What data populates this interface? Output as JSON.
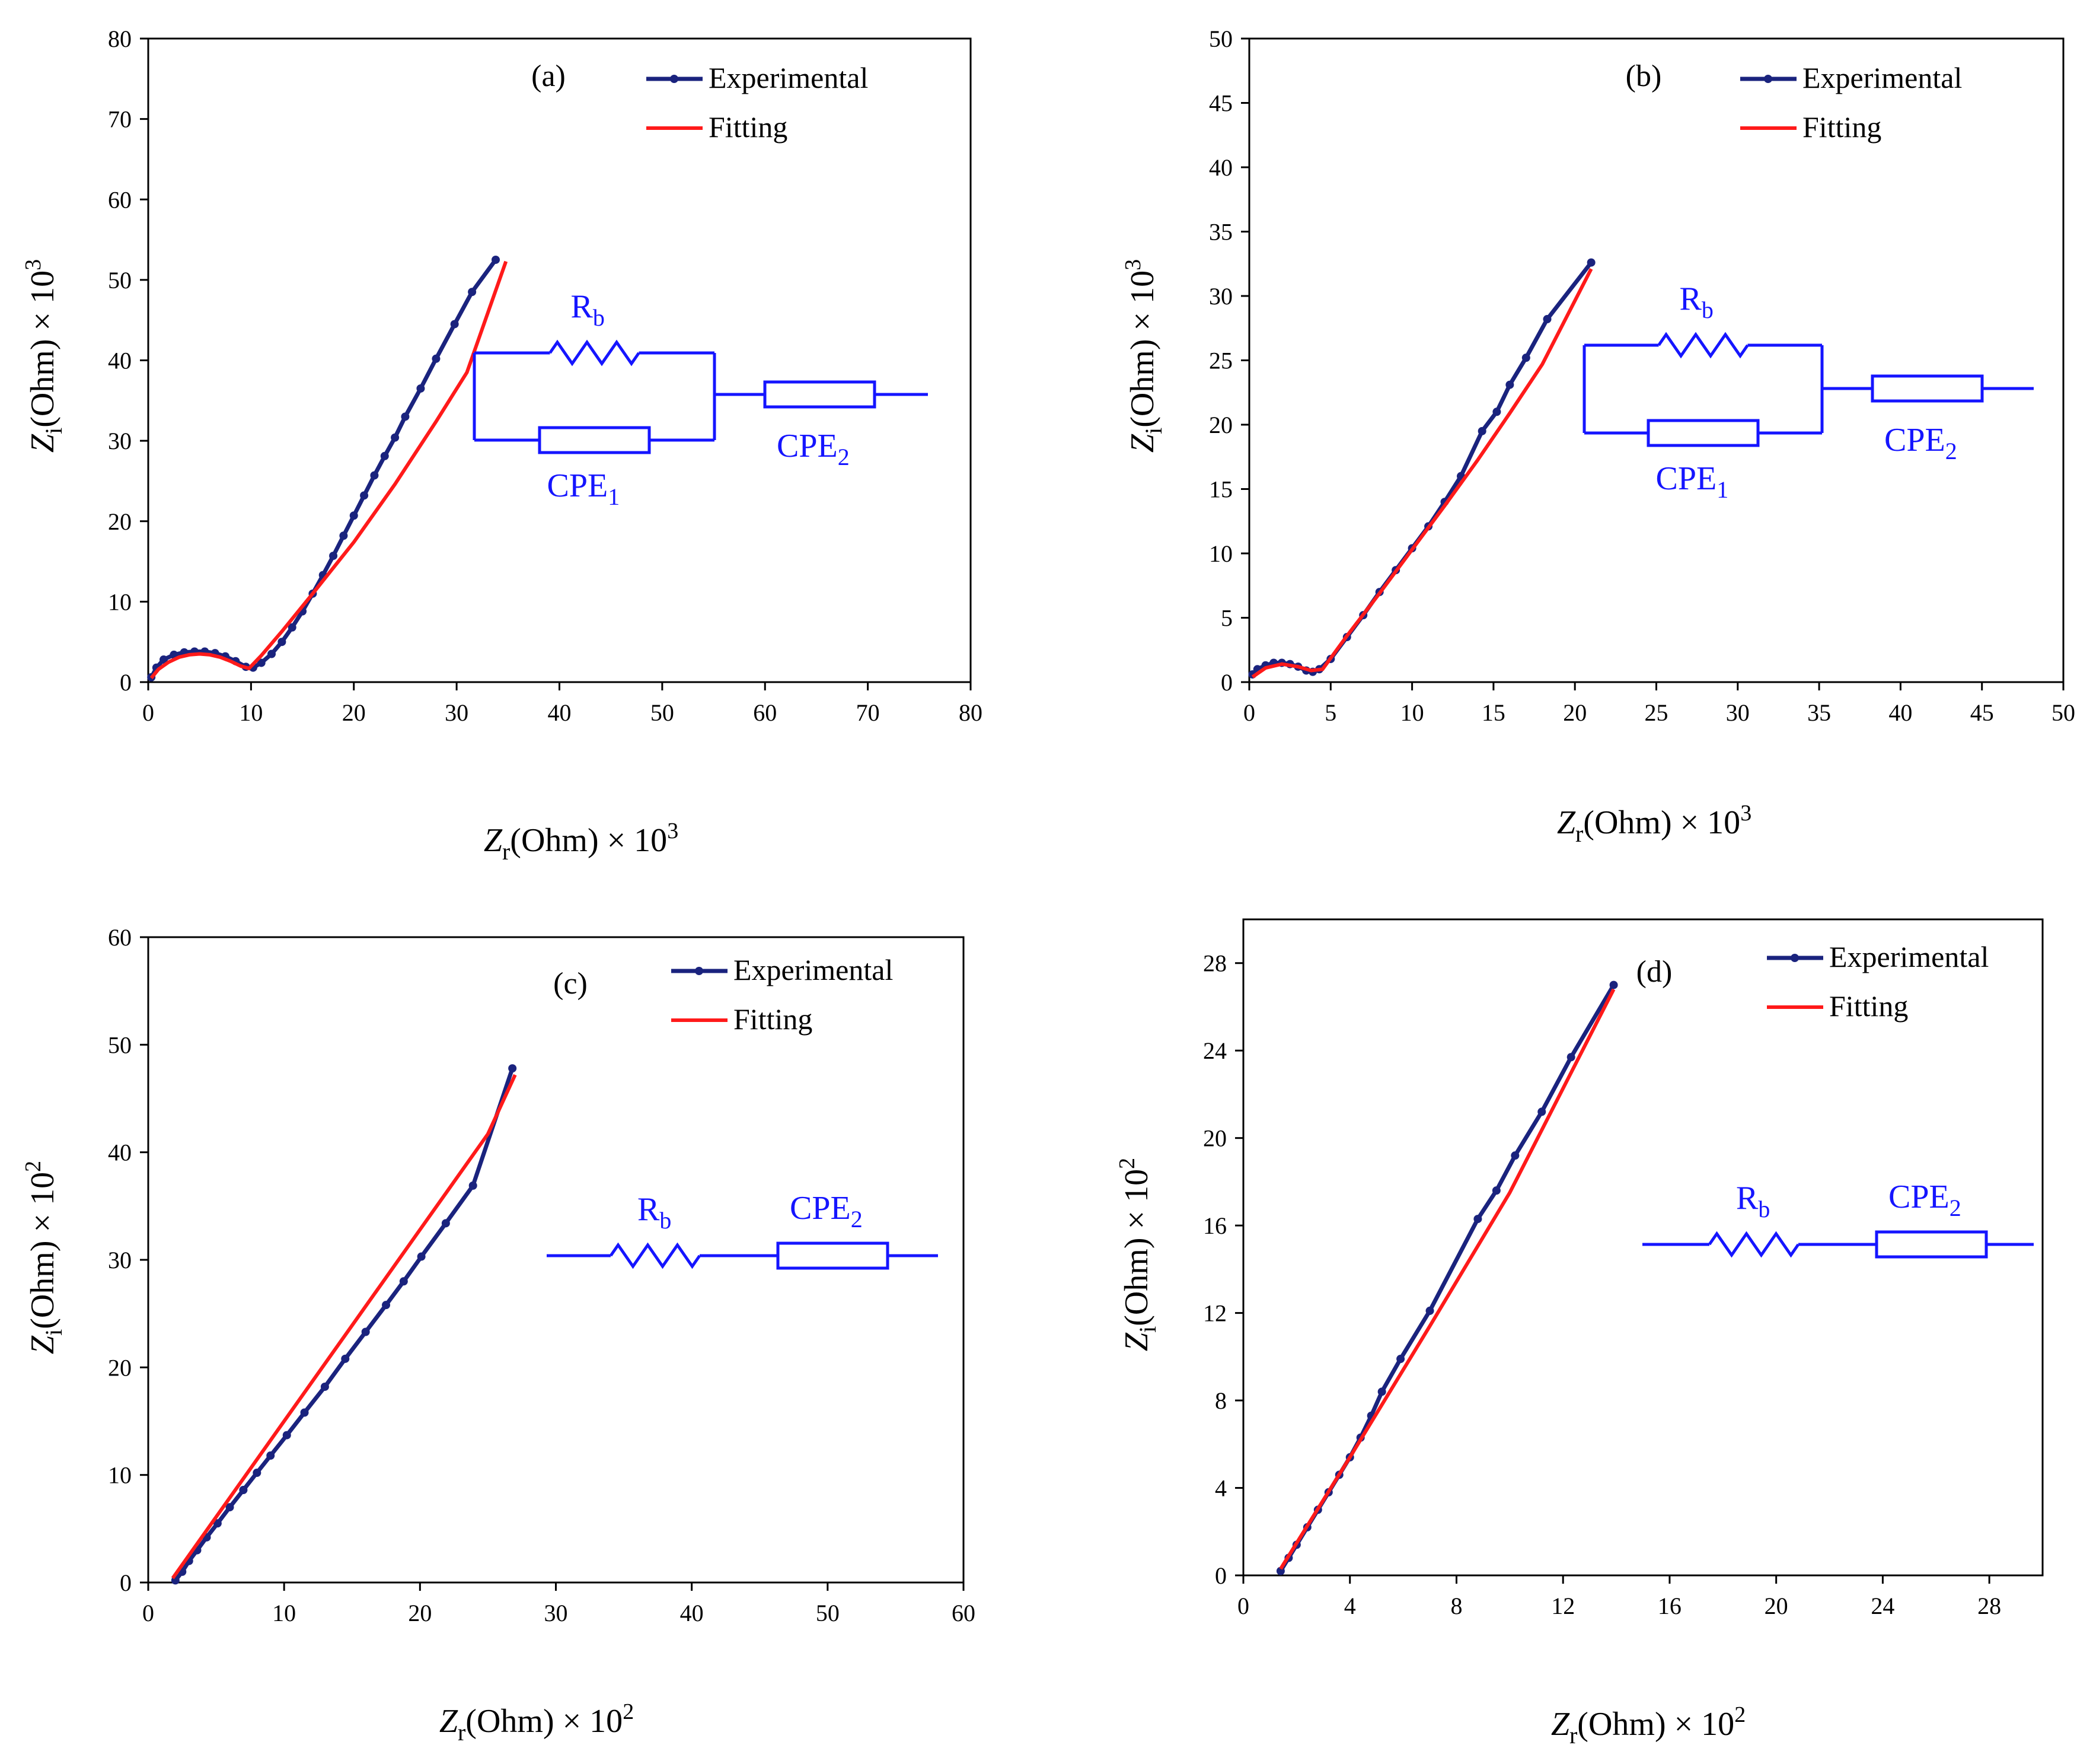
{
  "chart_data": [
    {
      "id": "a",
      "type": "line",
      "panel_label": "(a)",
      "xlabel": {
        "main": "Z",
        "sub": "r",
        "rest": "(Ohm) × 10",
        "sup": "3"
      },
      "ylabel": {
        "main": "Z",
        "sub": "i",
        "rest": "(Ohm) × 10",
        "sup": "3"
      },
      "xlim": [
        0,
        80
      ],
      "ylim": [
        0,
        80
      ],
      "xticks": [
        0,
        10,
        20,
        30,
        40,
        50,
        60,
        70,
        80
      ],
      "yticks": [
        0,
        10,
        20,
        30,
        40,
        50,
        60,
        70,
        80
      ],
      "legend": {
        "position": "top-right",
        "entries": [
          "Experimental",
          "Fitting"
        ]
      },
      "series": [
        {
          "name": "Experimental",
          "x": [
            0.3,
            0.8,
            1.5,
            2.5,
            3.5,
            4.5,
            5.5,
            6.5,
            7.5,
            8.5,
            9.5,
            10.2,
            11,
            12,
            13,
            14,
            15,
            16,
            17,
            18,
            19,
            20,
            21,
            22,
            23,
            24,
            25,
            26.5,
            28,
            29.8,
            31.5,
            33.8
          ],
          "y": [
            0.6,
            1.8,
            2.8,
            3.4,
            3.7,
            3.8,
            3.8,
            3.6,
            3.2,
            2.6,
            1.9,
            1.8,
            2.4,
            3.5,
            5.0,
            6.8,
            8.8,
            11.0,
            13.3,
            15.7,
            18.2,
            20.7,
            23.2,
            25.7,
            28.1,
            30.4,
            33.0,
            36.5,
            40.2,
            44.5,
            48.5,
            52.5
          ]
        },
        {
          "name": "Fitting",
          "x": [
            0.3,
            1,
            2,
            3,
            4,
            5,
            6,
            7,
            8,
            9,
            9.8,
            11,
            13,
            16,
            20,
            24,
            28,
            31,
            34.8
          ],
          "y": [
            0.5,
            1.6,
            2.5,
            3.1,
            3.4,
            3.5,
            3.4,
            3.1,
            2.6,
            2.0,
            1.7,
            3.3,
            6.3,
            11.0,
            17.4,
            24.6,
            32.4,
            38.5,
            52.3
          ]
        }
      ],
      "circuit": {
        "kind": "parallel",
        "labels": {
          "rb": "R",
          "rb_sub": "b",
          "cpe1": "CPE",
          "cpe1_sub": "1",
          "cpe2": "CPE",
          "cpe2_sub": "2"
        }
      }
    },
    {
      "id": "b",
      "type": "line",
      "panel_label": "(b)",
      "xlabel": {
        "main": "Z",
        "sub": "r",
        "rest": "(Ohm) × 10",
        "sup": "3"
      },
      "ylabel": {
        "main": "Z",
        "sub": "i",
        "rest": "(Ohm) × 10",
        "sup": "3"
      },
      "xlim": [
        0,
        50
      ],
      "ylim": [
        0,
        50
      ],
      "xticks": [
        0,
        5,
        10,
        15,
        20,
        25,
        30,
        35,
        40,
        45,
        50
      ],
      "yticks": [
        0,
        5,
        10,
        15,
        20,
        25,
        30,
        35,
        40,
        45,
        50
      ],
      "legend": {
        "position": "top-right",
        "entries": [
          "Experimental",
          "Fitting"
        ]
      },
      "series": [
        {
          "name": "Experimental",
          "x": [
            0.2,
            0.5,
            1.0,
            1.5,
            2.0,
            2.5,
            3.0,
            3.5,
            3.9,
            4.3,
            5.0,
            6.0,
            7.0,
            8.0,
            9.0,
            10.0,
            11.0,
            12.0,
            13.0,
            14.3,
            15.2,
            16.0,
            17.0,
            18.3,
            21.0
          ],
          "y": [
            0.6,
            1.0,
            1.3,
            1.5,
            1.5,
            1.4,
            1.2,
            0.9,
            0.8,
            1.0,
            1.8,
            3.5,
            5.2,
            7.0,
            8.7,
            10.4,
            12.1,
            14.0,
            16.0,
            19.5,
            21.0,
            23.1,
            25.2,
            28.2,
            32.6
          ]
        },
        {
          "name": "Fitting",
          "x": [
            0.2,
            1.0,
            2.0,
            3.0,
            3.8,
            4.5,
            6.0,
            8.0,
            10.0,
            12.0,
            14.0,
            16.0,
            18.0,
            21.0
          ],
          "y": [
            0.4,
            1.1,
            1.4,
            1.2,
            0.9,
            1.0,
            3.6,
            6.9,
            10.3,
            13.7,
            17.2,
            20.9,
            24.7,
            32.1
          ]
        }
      ],
      "circuit": {
        "kind": "parallel",
        "labels": {
          "rb": "R",
          "rb_sub": "b",
          "cpe1": "CPE",
          "cpe1_sub": "1",
          "cpe2": "CPE",
          "cpe2_sub": "2"
        }
      }
    },
    {
      "id": "c",
      "type": "line",
      "panel_label": "(c)",
      "xlabel": {
        "main": "Z",
        "sub": "r",
        "rest": "(Ohm) × 10",
        "sup": "2"
      },
      "ylabel": {
        "main": "Z",
        "sub": "i",
        "rest": "(Ohm) × 10",
        "sup": "2"
      },
      "xlim": [
        0,
        60
      ],
      "ylim": [
        0,
        60
      ],
      "xticks": [
        0,
        10,
        20,
        30,
        40,
        50,
        60
      ],
      "yticks": [
        0,
        10,
        20,
        30,
        40,
        50,
        60
      ],
      "legend": {
        "position": "top-right",
        "entries": [
          "Experimental",
          "Fitting"
        ]
      },
      "series": [
        {
          "name": "Experimental",
          "x": [
            2.0,
            2.5,
            3.0,
            3.6,
            4.3,
            5.1,
            6.0,
            7.0,
            8.0,
            9.0,
            10.2,
            11.5,
            13.0,
            14.5,
            16.0,
            17.5,
            18.8,
            20.1,
            21.9,
            23.9,
            26.8
          ],
          "y": [
            0.2,
            1.0,
            2.0,
            3.0,
            4.2,
            5.5,
            7.0,
            8.6,
            10.2,
            11.8,
            13.7,
            15.8,
            18.2,
            20.8,
            23.3,
            25.8,
            28.0,
            30.3,
            33.4,
            36.9,
            47.8
          ]
        },
        {
          "name": "Fitting",
          "x": [
            1.8,
            5.0,
            10.0,
            15.0,
            20.0,
            25.0,
            27.0
          ],
          "y": [
            0.4,
            6.1,
            15.0,
            23.9,
            32.8,
            41.7,
            47.2
          ]
        }
      ],
      "circuit": {
        "kind": "series",
        "labels": {
          "rb": "R",
          "rb_sub": "b",
          "cpe2": "CPE",
          "cpe2_sub": "2"
        }
      }
    },
    {
      "id": "d",
      "type": "line",
      "panel_label": "(d)",
      "xlabel": {
        "main": "Z",
        "sub": "r",
        "rest": "(Ohm) × 10",
        "sup": "2"
      },
      "ylabel": {
        "main": "Z",
        "sub": "i",
        "rest": "(Ohm) × 10",
        "sup": "2"
      },
      "xlim": [
        0,
        30
      ],
      "ylim": [
        0,
        30
      ],
      "xticks": [
        0,
        4,
        8,
        12,
        16,
        20,
        24,
        28
      ],
      "yticks": [
        0,
        4,
        8,
        12,
        16,
        20,
        24,
        28
      ],
      "legend": {
        "position": "top-right",
        "entries": [
          "Experimental",
          "Fitting"
        ]
      },
      "series": [
        {
          "name": "Experimental",
          "x": [
            1.4,
            1.7,
            2.0,
            2.4,
            2.8,
            3.2,
            3.6,
            4.0,
            4.4,
            4.8,
            5.2,
            5.9,
            7.0,
            8.8,
            9.5,
            10.2,
            11.2,
            12.3,
            13.9
          ],
          "y": [
            0.2,
            0.8,
            1.4,
            2.2,
            3.0,
            3.8,
            4.6,
            5.4,
            6.3,
            7.3,
            8.4,
            9.9,
            12.1,
            16.3,
            17.6,
            19.2,
            21.2,
            23.7,
            27.0
          ]
        },
        {
          "name": "Fitting",
          "x": [
            1.4,
            4.0,
            7.0,
            10.0,
            13.9
          ],
          "y": [
            0.3,
            5.4,
            11.4,
            17.5,
            26.8
          ]
        }
      ],
      "circuit": {
        "kind": "series",
        "labels": {
          "rb": "R",
          "rb_sub": "b",
          "cpe2": "CPE",
          "cpe2_sub": "2"
        }
      }
    }
  ]
}
